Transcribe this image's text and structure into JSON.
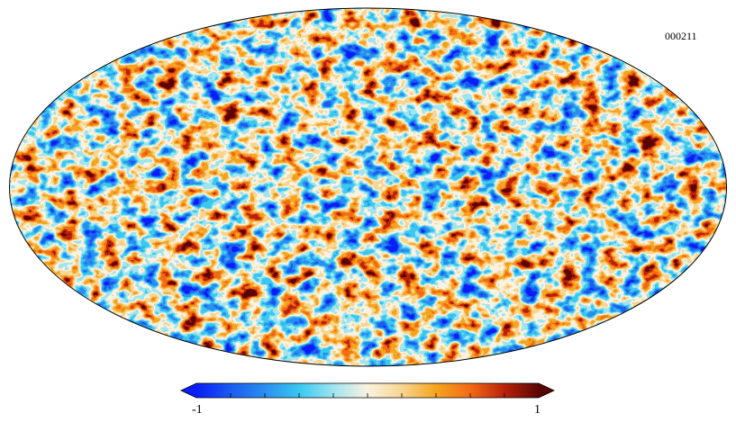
{
  "map": {
    "label": "000211",
    "projection": "mollweide",
    "colormap": [
      "#0a1ef5",
      "#1a5cf0",
      "#2a8ef0",
      "#38c8f0",
      "#9fe4ee",
      "#fbf2e0",
      "#f6d590",
      "#f5a41f",
      "#f36a14",
      "#b8220a",
      "#5a0505"
    ]
  },
  "colorbar": {
    "min_label": "-1",
    "max_label": "1",
    "min": -1,
    "max": 1,
    "tick_count": 10
  }
}
